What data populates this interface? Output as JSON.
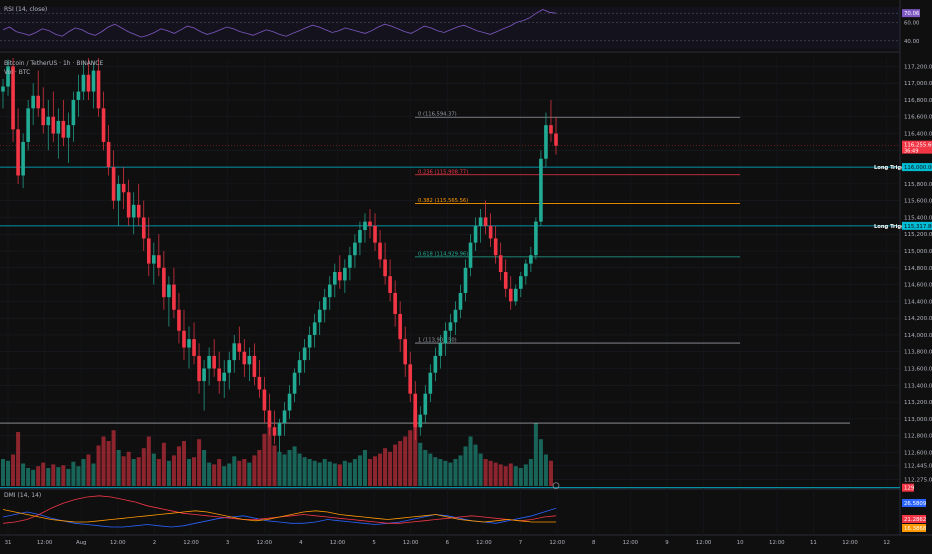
{
  "chart_data": {
    "type": "candlestick",
    "symbol": "Bitcoin / TetherUS · 1h · BINANCE",
    "volume_label": "Vol · BTC",
    "x_ticks": [
      "31",
      "12:00",
      "Aug",
      "12:00",
      "2",
      "12:00",
      "3",
      "12:00",
      "4",
      "12:00",
      "5",
      "12:00",
      "6",
      "12:00",
      "7",
      "12:00",
      "8",
      "12:00",
      "9",
      "12:00",
      "10",
      "12:00",
      "11",
      "12:00",
      "12"
    ],
    "y_ticks": [
      "117,200.00",
      "117,000.00",
      "116,800.00",
      "116,600.00",
      "116,400.00",
      "116,200.00",
      "116,000.00",
      "115,800.00",
      "115,600.00",
      "115,400.00",
      "115,200.00",
      "115,000.00",
      "114,800.00",
      "114,600.00",
      "114,400.00",
      "114,200.00",
      "114,000.00",
      "113,800.00",
      "113,600.00",
      "113,400.00",
      "113,200.00",
      "113,000.00",
      "112,800.00",
      "112,600.00",
      "112,445.00",
      "112,275.00"
    ],
    "y_range": [
      112200,
      117300
    ],
    "current_price": "116,255.60",
    "current_sub": "36:49",
    "fib_levels": [
      {
        "label": "0 (116,594.37)",
        "price": 116594.37,
        "color": "#9598a1"
      },
      {
        "label": "0.236 (115,908.77)",
        "price": 115908.77,
        "color": "#f23645"
      },
      {
        "label": "0.382 (115,565.56)",
        "price": 115565.56,
        "color": "#ff9800"
      },
      {
        "label": "0.618 (114,929.96)",
        "price": 114929.96,
        "color": "#22ab94"
      },
      {
        "label": "1 (113,903.50)",
        "price": 113903.5,
        "color": "#9598a1"
      }
    ],
    "support_line": {
      "price": 112950
    },
    "long_triggers": [
      {
        "label": "Long Trigger",
        "price": 116000,
        "badge": "116,000.00"
      },
      {
        "label": "Long Trigger",
        "price": 115300,
        "badge": "115,317.80"
      }
    ],
    "bottom_level": {
      "price": 112180,
      "badge": "129"
    },
    "rsi": {
      "label": "RSI (14, close)",
      "value": "70.06",
      "ticks": [
        "70.00",
        "60.00",
        "40.00"
      ],
      "range": [
        30,
        80
      ]
    },
    "dmi": {
      "label": "DMI (14, 14)",
      "values": [
        "26.5809",
        "21.2862",
        "16.3868"
      ],
      "colors": [
        "#2962ff",
        "#f23645",
        "#ff9800"
      ]
    },
    "candles": [
      [
        116900,
        117050,
        116700,
        116960
      ],
      [
        116960,
        117280,
        116850,
        117200
      ],
      [
        117200,
        117300,
        116300,
        116450
      ],
      [
        116450,
        116700,
        115800,
        115900
      ],
      [
        115900,
        116400,
        115750,
        116300
      ],
      [
        116300,
        116800,
        116200,
        116700
      ],
      [
        116700,
        117000,
        116500,
        116850
      ],
      [
        116850,
        117150,
        116600,
        116700
      ],
      [
        116700,
        116950,
        116400,
        116500
      ],
      [
        116500,
        116800,
        116200,
        116600
      ],
      [
        116600,
        116900,
        116300,
        116400
      ],
      [
        116400,
        116700,
        116100,
        116550
      ],
      [
        116550,
        116800,
        116250,
        116350
      ],
      [
        116350,
        116650,
        116050,
        116500
      ],
      [
        116500,
        116900,
        116300,
        116800
      ],
      [
        116800,
        117100,
        116600,
        116900
      ],
      [
        116900,
        117250,
        116800,
        117100
      ],
      [
        117100,
        117300,
        116800,
        116900
      ],
      [
        116900,
        117250,
        116700,
        117150
      ],
      [
        117150,
        117300,
        116600,
        116700
      ],
      [
        116700,
        116900,
        116200,
        116300
      ],
      [
        116300,
        116500,
        115900,
        116000
      ],
      [
        116000,
        116200,
        115500,
        115600
      ],
      [
        115600,
        115900,
        115300,
        115800
      ],
      [
        115800,
        116000,
        115500,
        115700
      ],
      [
        115700,
        115850,
        115300,
        115400
      ],
      [
        115400,
        115700,
        115200,
        115550
      ],
      [
        115550,
        115800,
        115300,
        115400
      ],
      [
        115400,
        115600,
        115000,
        115150
      ],
      [
        115150,
        115400,
        114700,
        114850
      ],
      [
        114850,
        115100,
        114600,
        114950
      ],
      [
        114950,
        115200,
        114700,
        114800
      ],
      [
        114800,
        115000,
        114300,
        114450
      ],
      [
        114450,
        114700,
        114100,
        114600
      ],
      [
        114600,
        114800,
        114200,
        114300
      ],
      [
        114300,
        114500,
        113900,
        114050
      ],
      [
        114050,
        114300,
        113700,
        113850
      ],
      [
        113850,
        114100,
        113600,
        113950
      ],
      [
        113950,
        114150,
        113650,
        113750
      ],
      [
        113750,
        113900,
        113300,
        113450
      ],
      [
        113450,
        113700,
        113100,
        113600
      ],
      [
        113600,
        113850,
        113400,
        113750
      ],
      [
        113750,
        113950,
        113500,
        113600
      ],
      [
        113600,
        113800,
        113300,
        113450
      ],
      [
        113450,
        113700,
        113250,
        113550
      ],
      [
        113550,
        113800,
        113350,
        113700
      ],
      [
        113700,
        114000,
        113550,
        113900
      ],
      [
        113900,
        114100,
        113700,
        113800
      ],
      [
        113800,
        113950,
        113500,
        113650
      ],
      [
        113650,
        113850,
        113450,
        113750
      ],
      [
        113750,
        113900,
        113400,
        113500
      ],
      [
        113500,
        113700,
        113250,
        113350
      ],
      [
        113350,
        113500,
        112950,
        113100
      ],
      [
        113100,
        113300,
        112800,
        112900
      ],
      [
        112900,
        113100,
        112700,
        112800
      ],
      [
        112800,
        113000,
        112600,
        112950
      ],
      [
        112950,
        113200,
        112800,
        113100
      ],
      [
        113100,
        113400,
        113000,
        113300
      ],
      [
        113300,
        113600,
        113200,
        113550
      ],
      [
        113550,
        113800,
        113400,
        113700
      ],
      [
        113700,
        113950,
        113550,
        113850
      ],
      [
        113850,
        114100,
        113700,
        114000
      ],
      [
        114000,
        114250,
        113850,
        114150
      ],
      [
        114150,
        114400,
        114000,
        114300
      ],
      [
        114300,
        114550,
        114150,
        114450
      ],
      [
        114450,
        114700,
        114300,
        114600
      ],
      [
        114600,
        114850,
        114450,
        114750
      ],
      [
        114750,
        114950,
        114550,
        114650
      ],
      [
        114650,
        114900,
        114500,
        114800
      ],
      [
        114800,
        115050,
        114650,
        114950
      ],
      [
        114950,
        115200,
        114800,
        115100
      ],
      [
        115100,
        115350,
        114950,
        115250
      ],
      [
        115250,
        115450,
        115100,
        115350
      ],
      [
        115350,
        115500,
        115150,
        115300
      ],
      [
        115300,
        115450,
        115000,
        115100
      ],
      [
        115100,
        115250,
        114800,
        114900
      ],
      [
        114900,
        115100,
        114600,
        114700
      ],
      [
        114700,
        114900,
        114400,
        114500
      ],
      [
        114500,
        114650,
        114100,
        114250
      ],
      [
        114250,
        114400,
        113800,
        113950
      ],
      [
        113950,
        114100,
        113500,
        113650
      ],
      [
        113650,
        113800,
        113200,
        113300
      ],
      [
        113300,
        113450,
        112750,
        112900
      ],
      [
        112900,
        113150,
        112800,
        113050
      ],
      [
        113050,
        113400,
        112950,
        113300
      ],
      [
        113300,
        113650,
        113200,
        113550
      ],
      [
        113550,
        113850,
        113450,
        113750
      ],
      [
        113750,
        114000,
        113600,
        113900
      ],
      [
        113900,
        114150,
        113750,
        114050
      ],
      [
        114050,
        114250,
        113900,
        114150
      ],
      [
        114150,
        114400,
        114000,
        114300
      ],
      [
        114300,
        114600,
        114200,
        114500
      ],
      [
        114500,
        114900,
        114400,
        114800
      ],
      [
        114800,
        115200,
        114700,
        115100
      ],
      [
        115100,
        115400,
        115000,
        115300
      ],
      [
        115300,
        115500,
        115100,
        115400
      ],
      [
        115400,
        115600,
        115200,
        115300
      ],
      [
        115300,
        115450,
        115050,
        115150
      ],
      [
        115150,
        115300,
        114850,
        114950
      ],
      [
        114950,
        115100,
        114650,
        114750
      ],
      [
        114750,
        114900,
        114450,
        114550
      ],
      [
        114550,
        114700,
        114300,
        114400
      ],
      [
        114400,
        114600,
        114350,
        114550
      ],
      [
        114550,
        114750,
        114450,
        114700
      ],
      [
        114700,
        114900,
        114600,
        114850
      ],
      [
        114850,
        115050,
        114750,
        114950
      ],
      [
        114950,
        115400,
        114900,
        115350
      ],
      [
        115350,
        116200,
        115300,
        116100
      ],
      [
        116100,
        116650,
        116000,
        116500
      ],
      [
        116500,
        116800,
        116300,
        116400
      ],
      [
        116400,
        116600,
        116150,
        116255.6
      ]
    ],
    "volumes": [
      0.3,
      0.28,
      0.35,
      0.6,
      0.25,
      0.2,
      0.18,
      0.22,
      0.26,
      0.2,
      0.24,
      0.21,
      0.23,
      0.19,
      0.27,
      0.22,
      0.3,
      0.35,
      0.25,
      0.45,
      0.55,
      0.5,
      0.62,
      0.4,
      0.33,
      0.38,
      0.3,
      0.32,
      0.42,
      0.55,
      0.36,
      0.3,
      0.48,
      0.28,
      0.34,
      0.44,
      0.5,
      0.3,
      0.32,
      0.52,
      0.4,
      0.26,
      0.24,
      0.3,
      0.22,
      0.25,
      0.33,
      0.28,
      0.3,
      0.26,
      0.34,
      0.4,
      0.58,
      0.66,
      0.45,
      0.38,
      0.35,
      0.4,
      0.44,
      0.36,
      0.32,
      0.3,
      0.28,
      0.26,
      0.3,
      0.27,
      0.25,
      0.24,
      0.28,
      0.26,
      0.3,
      0.34,
      0.4,
      0.3,
      0.33,
      0.36,
      0.42,
      0.38,
      0.46,
      0.5,
      0.55,
      0.62,
      0.85,
      0.48,
      0.4,
      0.36,
      0.32,
      0.3,
      0.28,
      0.26,
      0.3,
      0.34,
      0.44,
      0.55,
      0.46,
      0.36,
      0.3,
      0.28,
      0.26,
      0.24,
      0.22,
      0.25,
      0.22,
      0.2,
      0.24,
      0.3,
      0.7,
      0.52,
      0.35,
      0.28
    ],
    "rsi_values": [
      52,
      55,
      50,
      48,
      46,
      49,
      53,
      51,
      47,
      45,
      50,
      54,
      52,
      48,
      46,
      50,
      55,
      58,
      54,
      50,
      47,
      44,
      46,
      49,
      53,
      51,
      48,
      52,
      56,
      54,
      50,
      47,
      49,
      52,
      55,
      53,
      50,
      48,
      46,
      49,
      52,
      50,
      47,
      45,
      48,
      51,
      54,
      57,
      55,
      52,
      49,
      51,
      54,
      52,
      50,
      48,
      51,
      55,
      58,
      56,
      53,
      50,
      48,
      52,
      56,
      54,
      51,
      49,
      52,
      55,
      57,
      54,
      51,
      49,
      47,
      50,
      53,
      56,
      60,
      62,
      65,
      70,
      74,
      71,
      70
    ],
    "dmi_series": [
      [
        20,
        22,
        24,
        22,
        19,
        17,
        15,
        14,
        13,
        12,
        12,
        13,
        14,
        13,
        12,
        13,
        15,
        17,
        19,
        20,
        21,
        19,
        17,
        16,
        15,
        15,
        16,
        18,
        17,
        16,
        15,
        14,
        15,
        16,
        18,
        20,
        22,
        21,
        19,
        17,
        16,
        15,
        17,
        19,
        21,
        24,
        27
      ],
      [
        15,
        16,
        18,
        22,
        27,
        31,
        34,
        36,
        37,
        36,
        34,
        32,
        29,
        27,
        25,
        23,
        22,
        21,
        20,
        19,
        18,
        18,
        19,
        20,
        21,
        22,
        21,
        20,
        19,
        18,
        17,
        16,
        15,
        15,
        16,
        17,
        18,
        19,
        20,
        21,
        20,
        19,
        18,
        17,
        18,
        20,
        21
      ],
      [
        26,
        24,
        22,
        20,
        18,
        17,
        16,
        16,
        17,
        18,
        19,
        20,
        21,
        22,
        23,
        24,
        25,
        24,
        22,
        20,
        18,
        17,
        18,
        20,
        22,
        24,
        25,
        24,
        22,
        21,
        20,
        19,
        18,
        19,
        20,
        21,
        22,
        20,
        18,
        17,
        16,
        17,
        18,
        17,
        16,
        16,
        16
      ]
    ]
  }
}
